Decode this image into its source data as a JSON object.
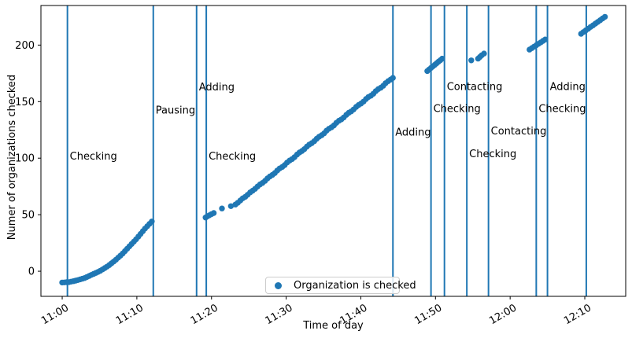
{
  "chart_data": {
    "type": "scatter",
    "title": "",
    "xlabel": "Time of day",
    "ylabel": "Numer of organizations checked",
    "x_unit": "minutes after 11:00",
    "xlim": [
      -2.85,
      75.48
    ],
    "ylim": [
      -22.2,
      235.0
    ],
    "grid": false,
    "x_ticks": [
      {
        "t": 0,
        "label": "11:00"
      },
      {
        "t": 10,
        "label": "11:10"
      },
      {
        "t": 20,
        "label": "11:20"
      },
      {
        "t": 30,
        "label": "11:30"
      },
      {
        "t": 40,
        "label": "11:40"
      },
      {
        "t": 50,
        "label": "11:50"
      },
      {
        "t": 60,
        "label": "12:00"
      },
      {
        "t": 70,
        "label": "12:10"
      }
    ],
    "y_ticks": [
      0,
      50,
      100,
      150,
      200
    ],
    "legend": {
      "label": "Organization is checked",
      "position": "lower center"
    },
    "colors": {
      "accent": "#1f77b4",
      "spine": "#000000",
      "legend_border": "#cccccc",
      "text": "#000000"
    },
    "event_lines": [
      {
        "t": 0.7,
        "label": "Checking",
        "label_v": 102
      },
      {
        "t": 12.2,
        "label": "Pausing",
        "label_v": 142.5
      },
      {
        "t": 18.0,
        "label": "Adding",
        "label_v": 163
      },
      {
        "t": 19.3,
        "label": "Checking",
        "label_v": 102
      },
      {
        "t": 44.3,
        "label": "Adding",
        "label_v": 123
      },
      {
        "t": 49.4,
        "label": "Checking",
        "label_v": 144
      },
      {
        "t": 51.2,
        "label": "Contacting",
        "label_v": 163.5
      },
      {
        "t": 54.2,
        "label": "Checking",
        "label_v": 104
      },
      {
        "t": 57.1,
        "label": "Contacting",
        "label_v": 124
      },
      {
        "t": 63.5,
        "label": "Checking",
        "label_v": 144
      },
      {
        "t": 65.0,
        "label": "Adding",
        "label_v": 163.5
      },
      {
        "t": 70.2,
        "label": "",
        "label_v": 0
      }
    ],
    "series": [
      {
        "name": "Organization is checked",
        "marker": "circle",
        "color": "#1f77b4",
        "points": [
          [
            0,
            -10
          ],
          [
            0.3,
            -9.9
          ],
          [
            0.6,
            -9.7
          ],
          [
            0.9,
            -9.6
          ],
          [
            1.2,
            -9.2
          ],
          [
            1.5,
            -8.8
          ],
          [
            1.8,
            -8.3
          ],
          [
            2.1,
            -7.8
          ],
          [
            2.4,
            -7.2
          ],
          [
            2.7,
            -6.6
          ],
          [
            3,
            -6
          ],
          [
            3.3,
            -5.1
          ],
          [
            3.6,
            -4.2
          ],
          [
            3.9,
            -3.3
          ],
          [
            4.2,
            -2.4
          ],
          [
            4.5,
            -1.5
          ],
          [
            4.8,
            -0.6
          ],
          [
            5.1,
            0.4
          ],
          [
            5.4,
            1.6
          ],
          [
            5.7,
            2.8
          ],
          [
            6,
            4
          ],
          [
            6.3,
            5.5
          ],
          [
            6.6,
            7
          ],
          [
            6.9,
            8.5
          ],
          [
            7.2,
            10.2
          ],
          [
            7.5,
            12
          ],
          [
            7.8,
            13.8
          ],
          [
            8.1,
            15.7
          ],
          [
            8.4,
            17.8
          ],
          [
            8.7,
            19.9
          ],
          [
            9,
            22
          ],
          [
            9.3,
            24.1
          ],
          [
            9.6,
            26.2
          ],
          [
            9.9,
            28.3
          ],
          [
            10.2,
            30.6
          ],
          [
            10.5,
            33
          ],
          [
            10.8,
            35.4
          ],
          [
            11.1,
            37.7
          ],
          [
            11.4,
            39.8
          ],
          [
            11.7,
            41.9
          ],
          [
            12,
            44
          ],
          [
            19.2,
            47.5
          ],
          [
            19.45,
            48.5
          ],
          [
            19.7,
            49.5
          ],
          [
            20,
            50.5
          ],
          [
            20.3,
            51.5
          ],
          [
            21.4,
            55.5
          ],
          [
            22.6,
            57.5
          ],
          [
            23.2,
            59.0
          ],
          [
            23.53,
            60.6
          ],
          [
            23.86,
            62.6
          ],
          [
            24.19,
            64.5
          ],
          [
            24.52,
            65.8
          ],
          [
            24.85,
            67.6
          ],
          [
            25.18,
            69.8
          ],
          [
            25.51,
            71.2
          ],
          [
            25.84,
            72.9
          ],
          [
            26.17,
            75.0
          ],
          [
            26.5,
            76.8
          ],
          [
            26.83,
            78.1
          ],
          [
            27.16,
            79.9
          ],
          [
            27.49,
            82.1
          ],
          [
            27.82,
            83.8
          ],
          [
            28.15,
            85.2
          ],
          [
            28.48,
            86.9
          ],
          [
            28.81,
            89.1
          ],
          [
            29.14,
            90.9
          ],
          [
            29.47,
            92.2
          ],
          [
            29.8,
            93.9
          ],
          [
            30.13,
            96.1
          ],
          [
            30.46,
            97.9
          ],
          [
            30.79,
            99.2
          ],
          [
            31.12,
            100.9
          ],
          [
            31.45,
            103.2
          ],
          [
            31.78,
            105.0
          ],
          [
            32.11,
            106.3
          ],
          [
            32.44,
            108.0
          ],
          [
            32.77,
            110.2
          ],
          [
            33.1,
            112.0
          ],
          [
            33.43,
            113.3
          ],
          [
            33.76,
            115.0
          ],
          [
            34.09,
            117.2
          ],
          [
            34.42,
            119.0
          ],
          [
            34.75,
            120.3
          ],
          [
            35.08,
            122.0
          ],
          [
            35.41,
            124.3
          ],
          [
            35.74,
            126.0
          ],
          [
            36.07,
            127.3
          ],
          [
            36.4,
            129.0
          ],
          [
            36.73,
            131.3
          ],
          [
            37.06,
            133.1
          ],
          [
            37.39,
            134.3
          ],
          [
            37.72,
            136.0
          ],
          [
            38.05,
            138.3
          ],
          [
            38.38,
            140.1
          ],
          [
            38.71,
            141.3
          ],
          [
            39.04,
            143.0
          ],
          [
            39.37,
            145.3
          ],
          [
            39.7,
            147.0
          ],
          [
            40.03,
            148.3
          ],
          [
            40.36,
            150.0
          ],
          [
            40.69,
            152.3
          ],
          [
            41.02,
            154.1
          ],
          [
            41.35,
            155.3
          ],
          [
            41.68,
            157.0
          ],
          [
            42.01,
            159.3
          ],
          [
            42.34,
            161.1
          ],
          [
            42.67,
            162.3
          ],
          [
            43.0,
            164.0
          ],
          [
            43.33,
            166.3
          ],
          [
            43.66,
            168.1
          ],
          [
            43.99,
            169.5
          ],
          [
            44.3,
            171.0
          ],
          [
            48.9,
            177
          ],
          [
            49.15,
            178.4
          ],
          [
            49.4,
            179.8
          ],
          [
            49.65,
            181.2
          ],
          [
            49.9,
            182.5
          ],
          [
            50.15,
            183.9
          ],
          [
            50.4,
            185.3
          ],
          [
            50.65,
            186.6
          ],
          [
            50.9,
            188
          ],
          [
            54.8,
            186.5
          ],
          [
            55.7,
            188
          ],
          [
            55.95,
            189.5
          ],
          [
            56.2,
            191
          ],
          [
            56.5,
            192.5
          ],
          [
            62.6,
            196
          ],
          [
            62.9,
            197.3
          ],
          [
            63.2,
            198.6
          ],
          [
            63.5,
            199.9
          ],
          [
            63.8,
            201.1
          ],
          [
            64.1,
            202.4
          ],
          [
            64.4,
            203.7
          ],
          [
            64.7,
            205
          ],
          [
            69.5,
            210
          ],
          [
            69.82,
            211.5
          ],
          [
            70.14,
            213
          ],
          [
            70.46,
            214.5
          ],
          [
            70.78,
            216
          ],
          [
            71.1,
            217.5
          ],
          [
            71.42,
            219
          ],
          [
            71.74,
            220.5
          ],
          [
            72.06,
            222
          ],
          [
            72.38,
            223.5
          ],
          [
            72.7,
            225
          ]
        ]
      }
    ]
  }
}
